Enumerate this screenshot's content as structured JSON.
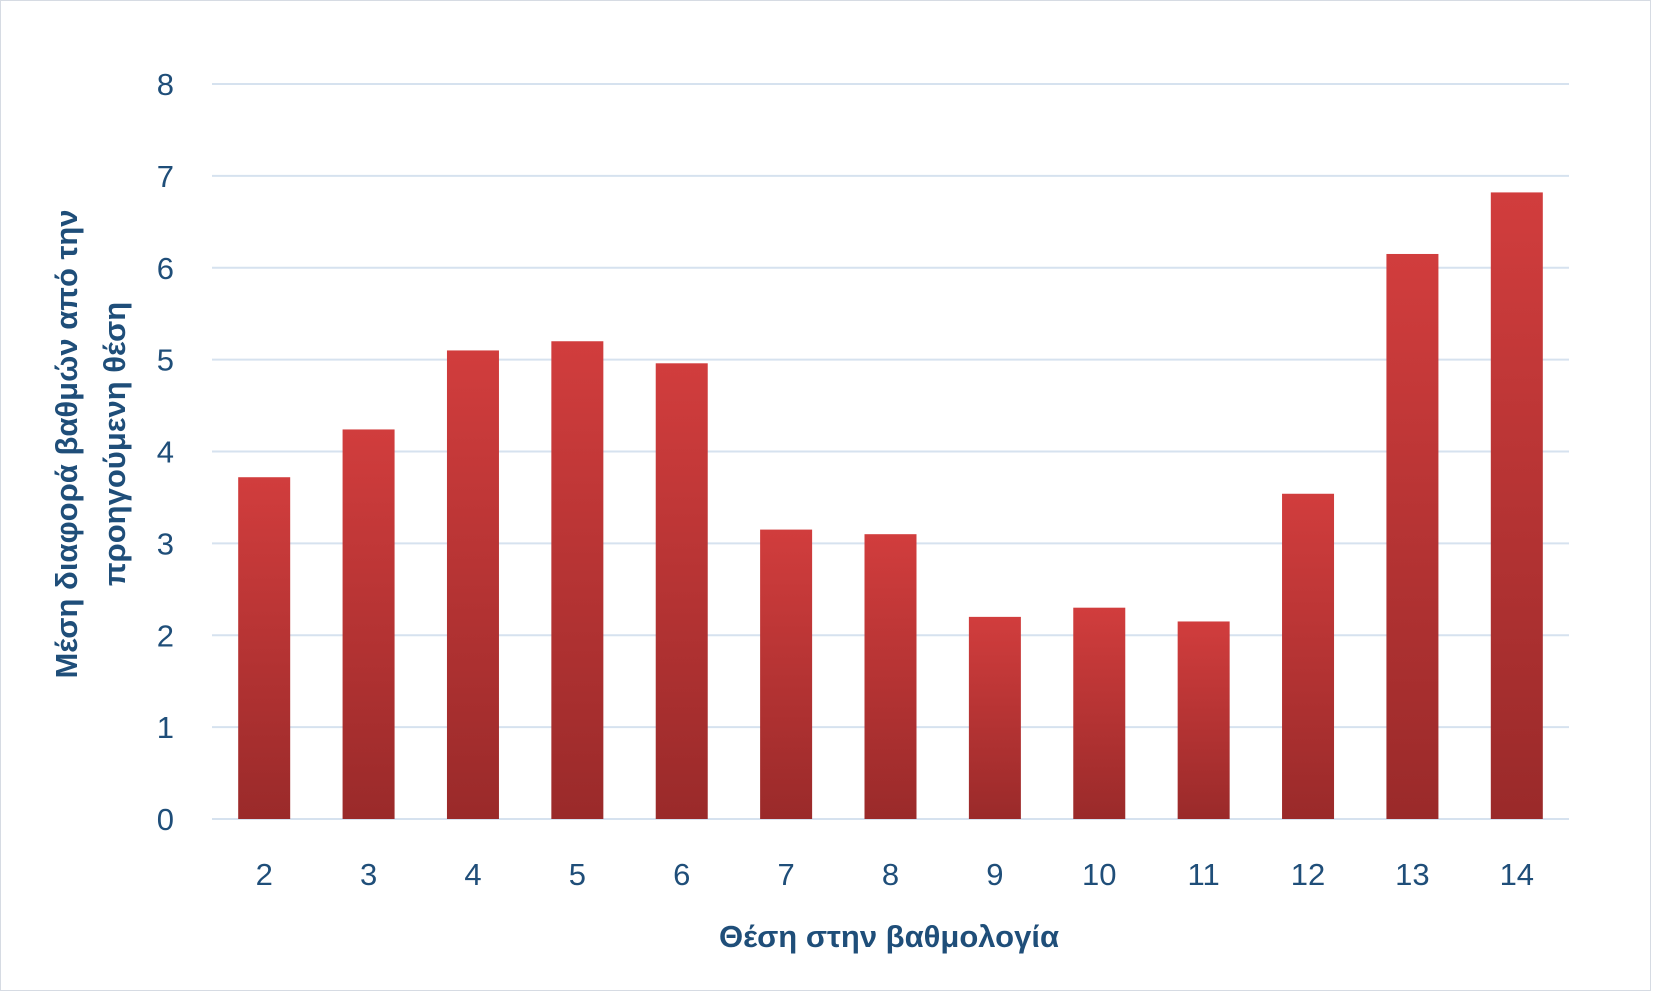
{
  "chart_data": {
    "type": "bar",
    "title": "",
    "xlabel": "Θέση στην βαθμολογία",
    "ylabel_lines": [
      "Μέση διαφορά βαθμών από την",
      "προηγούμενη θέση"
    ],
    "categories": [
      "2",
      "3",
      "4",
      "5",
      "6",
      "7",
      "8",
      "9",
      "10",
      "11",
      "12",
      "13",
      "14"
    ],
    "values": [
      3.72,
      4.24,
      5.1,
      5.2,
      4.96,
      3.15,
      3.1,
      2.2,
      2.3,
      2.15,
      3.54,
      6.15,
      6.82
    ],
    "ylim": [
      0,
      8
    ],
    "yticks": [
      "0",
      "1",
      "2",
      "3",
      "4",
      "5",
      "6",
      "7",
      "8"
    ],
    "grid": true,
    "legend": "none",
    "colors": {
      "bar_top": "#d13d3d",
      "bar_bottom": "#9a2a2a",
      "grid": "#d6e2ef",
      "text": "#1f4e79"
    }
  }
}
